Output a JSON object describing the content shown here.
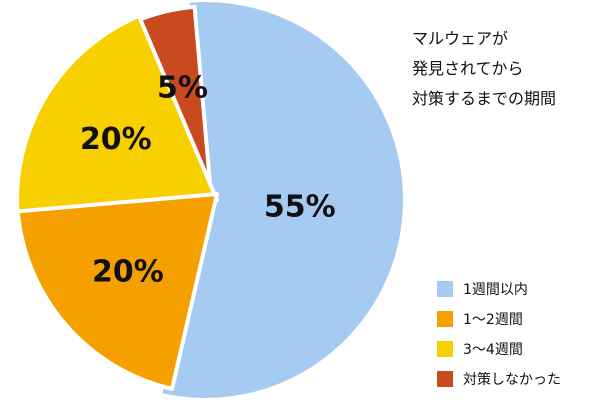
{
  "chart_data": {
    "type": "pie",
    "title_lines": [
      "マルウェアが",
      "発見されてから",
      "対策するまでの期間"
    ],
    "start_angle_deg": -5,
    "direction": "clockwise",
    "legend_position": "bottom-right",
    "slices": [
      {
        "label": "1週間以内",
        "value": 55,
        "display": "55%",
        "color": "#a6cbf2"
      },
      {
        "label": "1～2週間",
        "value": 20,
        "display": "20%",
        "color": "#f5a000"
      },
      {
        "label": "3～4週間",
        "value": 20,
        "display": "20%",
        "color": "#f8d000"
      },
      {
        "label": "対策しなかった",
        "value": 5,
        "display": "5%",
        "color": "#c84a1e"
      }
    ],
    "draw_order": [
      0,
      3,
      2,
      1
    ]
  }
}
